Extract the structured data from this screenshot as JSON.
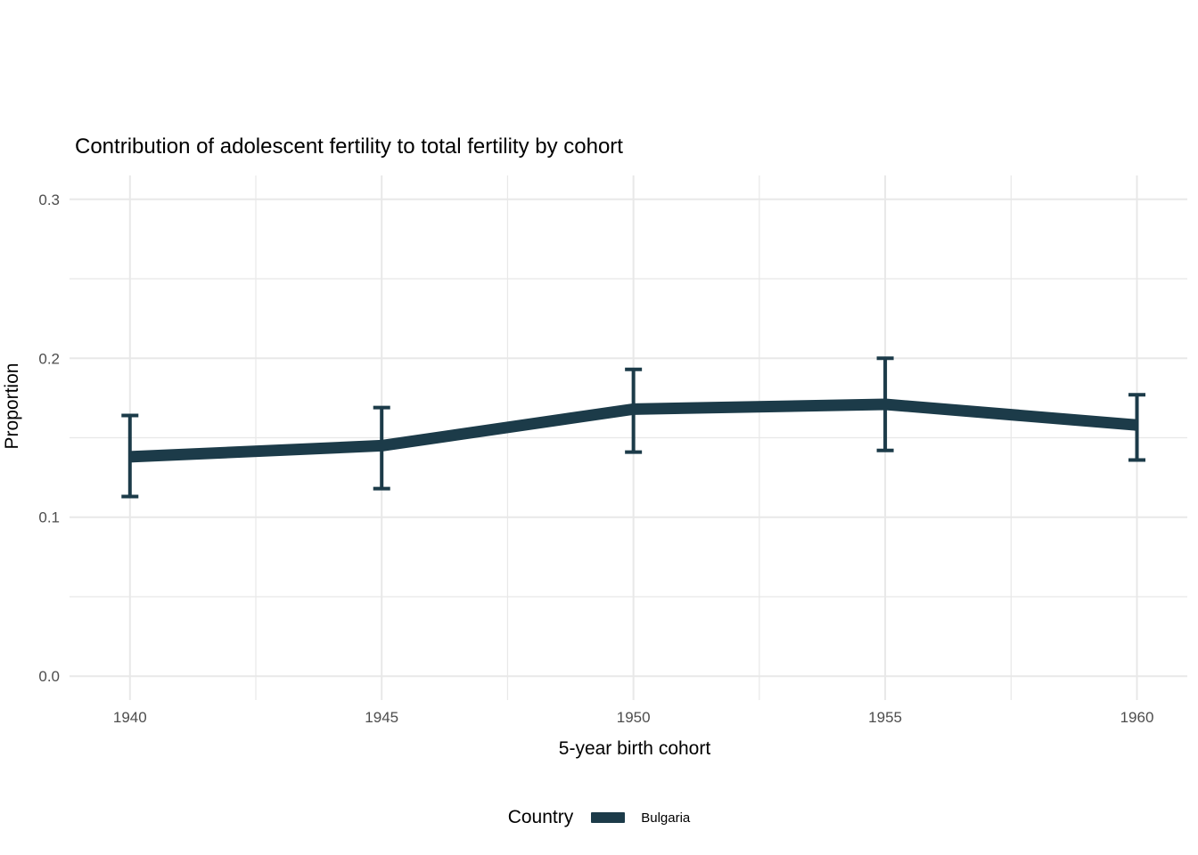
{
  "chart_data": {
    "type": "line",
    "title": "Contribution of adolescent fertility to total fertility by cohort",
    "xlabel": "5-year birth cohort",
    "ylabel": "Proportion",
    "legend_title": "Country",
    "legend_position": "bottom",
    "grid": "major+minor",
    "x": [
      1940,
      1945,
      1950,
      1955,
      1960
    ],
    "series": [
      {
        "name": "Bulgaria",
        "color": "#1c3b49",
        "values": [
          0.138,
          0.145,
          0.168,
          0.171,
          0.158
        ],
        "err_low": [
          0.113,
          0.118,
          0.141,
          0.142,
          0.136
        ],
        "err_high": [
          0.164,
          0.169,
          0.193,
          0.2,
          0.177
        ]
      }
    ],
    "xlim": [
      1938.8,
      1961.0
    ],
    "ylim": [
      -0.015,
      0.315
    ],
    "x_ticks": {
      "values": [
        1940,
        1945,
        1950,
        1955,
        1960
      ],
      "labels": [
        "1940",
        "1945",
        "1950",
        "1955",
        "1960"
      ]
    },
    "x_minor": [
      1942.5,
      1947.5,
      1952.5,
      1957.5
    ],
    "y_ticks": {
      "values": [
        0.0,
        0.1,
        0.2,
        0.3
      ],
      "labels": [
        "0.0",
        "0.1",
        "0.2",
        "0.3"
      ]
    },
    "y_minor": [
      0.05,
      0.15,
      0.25
    ]
  },
  "style": {
    "accent": "#1c3b49",
    "grid_color": "#e8e8e8",
    "tick_label_color": "#4d4d4d",
    "title_color": "#000000",
    "background": "#ffffff"
  }
}
